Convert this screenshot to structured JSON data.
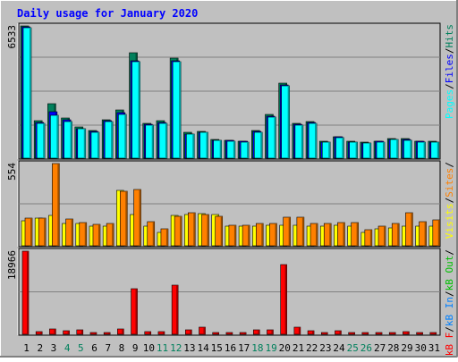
{
  "title": "Daily usage for January 2020",
  "colors": {
    "background": "#c0c0c0",
    "title": "#0000ff",
    "hits": "#00805c",
    "files": "#0000ff",
    "pages": "#00ffff",
    "visits": "#ffff00",
    "sites": "#ff8000",
    "kbytes": "#ff0000",
    "kb_in": "#0080ff",
    "kb_out": "#00c000",
    "weekend_tick": "#00805c",
    "weekday_tick": "#000000"
  },
  "chart_data": [
    {
      "type": "bar",
      "panel": "top",
      "ymax_label": "6533",
      "ylim": [
        0,
        6533
      ],
      "categories": [
        "1",
        "2",
        "3",
        "4",
        "5",
        "6",
        "7",
        "8",
        "9",
        "10",
        "11",
        "12",
        "13",
        "14",
        "15",
        "16",
        "17",
        "18",
        "19",
        "20",
        "21",
        "22",
        "23",
        "24",
        "25",
        "26",
        "27",
        "28",
        "29",
        "30",
        "31"
      ],
      "weekend_days": [
        4,
        5,
        11,
        12,
        18,
        19,
        25,
        26
      ],
      "legend": [
        "Pages",
        "Files",
        "Hits"
      ],
      "legend_seps": [
        "/",
        "/"
      ],
      "series": [
        {
          "name": "Hits",
          "values": [
            6530,
            1850,
            2690,
            2000,
            1540,
            1380,
            1920,
            2370,
            5200,
            1720,
            1860,
            4950,
            1260,
            1330,
            940,
            900,
            860,
            1390,
            2170,
            3690,
            1730,
            1820,
            830,
            1070,
            830,
            790,
            850,
            970,
            950,
            860,
            840
          ]
        },
        {
          "name": "Files",
          "values": [
            6490,
            1770,
            2280,
            1880,
            1470,
            1320,
            1840,
            2240,
            4820,
            1670,
            1780,
            4800,
            1210,
            1290,
            900,
            870,
            830,
            1330,
            2070,
            3610,
            1670,
            1760,
            810,
            1040,
            810,
            770,
            830,
            940,
            920,
            830,
            810
          ]
        },
        {
          "name": "Pages",
          "values": [
            6440,
            1730,
            2140,
            1830,
            1440,
            1290,
            1790,
            2160,
            4770,
            1630,
            1740,
            4760,
            1190,
            1270,
            880,
            850,
            810,
            1300,
            2030,
            3560,
            1640,
            1730,
            790,
            1010,
            790,
            750,
            810,
            920,
            900,
            810,
            790
          ]
        }
      ]
    },
    {
      "type": "bar",
      "panel": "middle",
      "ymax_label": "554",
      "ylim": [
        0,
        554
      ],
      "categories": [
        "1",
        "2",
        "3",
        "4",
        "5",
        "6",
        "7",
        "8",
        "9",
        "10",
        "11",
        "12",
        "13",
        "14",
        "15",
        "16",
        "17",
        "18",
        "19",
        "20",
        "21",
        "22",
        "23",
        "24",
        "25",
        "26",
        "27",
        "28",
        "29",
        "30",
        "31"
      ],
      "legend": [
        "Visits",
        "Sites"
      ],
      "legend_seps": [
        "/",
        "/"
      ],
      "series": [
        {
          "name": "Visits",
          "values": [
            168,
            185,
            205,
            150,
            148,
            132,
            134,
            372,
            210,
            132,
            92,
            202,
            212,
            214,
            208,
            135,
            135,
            132,
            136,
            138,
            140,
            135,
            135,
            136,
            135,
            90,
            115,
            120,
            130,
            130,
            130
          ]
        },
        {
          "name": "Sites",
          "values": [
            185,
            187,
            554,
            178,
            158,
            145,
            150,
            368,
            380,
            160,
            112,
            198,
            220,
            212,
            198,
            140,
            140,
            148,
            152,
            190,
            195,
            150,
            150,
            158,
            155,
            108,
            130,
            150,
            222,
            165,
            172
          ]
        }
      ]
    },
    {
      "type": "bar",
      "panel": "bottom",
      "ymax_label": "18966",
      "ylim": [
        0,
        18966
      ],
      "categories": [
        "1",
        "2",
        "3",
        "4",
        "5",
        "6",
        "7",
        "8",
        "9",
        "10",
        "11",
        "12",
        "13",
        "14",
        "15",
        "16",
        "17",
        "18",
        "19",
        "20",
        "21",
        "22",
        "23",
        "24",
        "25",
        "26",
        "27",
        "28",
        "29",
        "30",
        "31"
      ],
      "legend": [
        "KBytes",
        "KB In",
        "KB Out"
      ],
      "legend_text": [
        "kB F",
        "kB In",
        "kB Out"
      ],
      "legend_seps": [
        "/",
        "/",
        "/"
      ],
      "series": [
        {
          "name": "KBytes",
          "values": [
            18966,
            610,
            1140,
            740,
            1080,
            450,
            380,
            1260,
            10400,
            610,
            700,
            11200,
            1070,
            1680,
            370,
            490,
            450,
            940,
            960,
            16000,
            1710,
            830,
            450,
            790,
            480,
            450,
            450,
            450,
            560,
            450,
            480
          ]
        }
      ]
    }
  ]
}
